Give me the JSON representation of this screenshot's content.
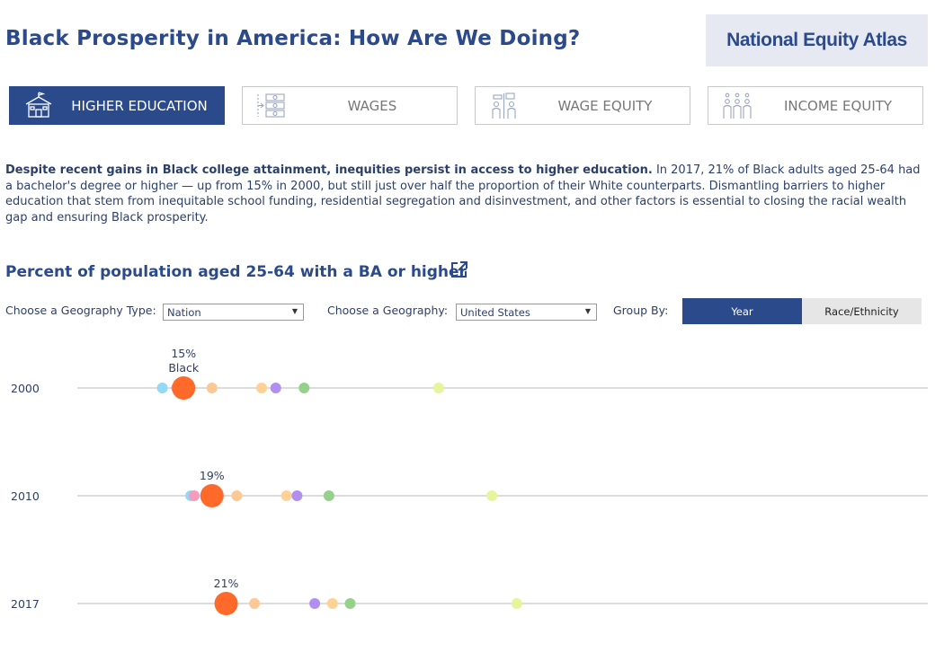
{
  "header": {
    "title": "Black Prosperity in America: How Are We Doing?",
    "logo_text": "National Equity Atlas"
  },
  "tabs": [
    {
      "label": "HIGHER EDUCATION",
      "icon": "school-icon",
      "active": true
    },
    {
      "label": "WAGES",
      "icon": "money-stack-icon",
      "active": false
    },
    {
      "label": "WAGE EQUITY",
      "icon": "people-scale-icon",
      "active": false
    },
    {
      "label": "INCOME EQUITY",
      "icon": "family-icon",
      "active": false
    }
  ],
  "intro": {
    "bold": "Despite recent gains in Black college attainment, inequities persist in access to higher education.",
    "text": " In 2017, 21% of Black adults aged 25-64 had a bachelor's degree or higher — up from 15% in 2000, but still just over half the proportion of their White counterparts. Dismantling barriers to higher education that stem from inequitable school funding, residential segregation and disinvestment, and other factors is essential to closing the racial wealth gap and ensuring Black prosperity."
  },
  "chart_section": {
    "title": "Percent of population aged 25-64 with a BA or higher",
    "external_icon": "external-link-icon"
  },
  "controls": {
    "geo_type_label": "Choose a Geography Type:",
    "geo_type_value": "Nation",
    "geo_label": "Choose a Geography:",
    "geo_value": "United States",
    "group_label": "Group By:",
    "group_options": [
      "Year",
      "Race/Ethnicity"
    ],
    "group_selected": "Year"
  },
  "chart_data": {
    "type": "scatter",
    "title": "Percent of population aged 25-64 with a BA or higher",
    "rows": [
      "2000",
      "2010",
      "2017"
    ],
    "highlight_group": "Black",
    "highlight_color": "#ff6a2b",
    "highlight_labels": [
      "15%",
      "19%",
      "21%"
    ],
    "highlight_sublabel": "Black",
    "series": [
      {
        "name": "group-blue",
        "color": "#93d8f5",
        "values": [
          12,
          16,
          21.5
        ]
      },
      {
        "name": "group-pink",
        "color": "#f59bbd",
        "values": [
          14,
          16.5,
          20.5
        ]
      },
      {
        "name": "Black",
        "color": "#ff6a2b",
        "values": [
          15,
          19,
          21
        ]
      },
      {
        "name": "group-peach",
        "color": "#fcc896",
        "values": [
          19,
          22.5,
          25
        ]
      },
      {
        "name": "group-lightorange",
        "color": "#ffd195",
        "values": [
          26,
          29.5,
          36
        ]
      },
      {
        "name": "group-purple",
        "color": "#b08ff0",
        "values": [
          28,
          31,
          33.5
        ]
      },
      {
        "name": "group-green",
        "color": "#95d18a",
        "values": [
          32,
          35.5,
          38.5
        ]
      },
      {
        "name": "group-lime",
        "color": "#e6f59b",
        "values": [
          51,
          58.5,
          62
        ]
      }
    ],
    "xlim": [
      0,
      120
    ]
  }
}
